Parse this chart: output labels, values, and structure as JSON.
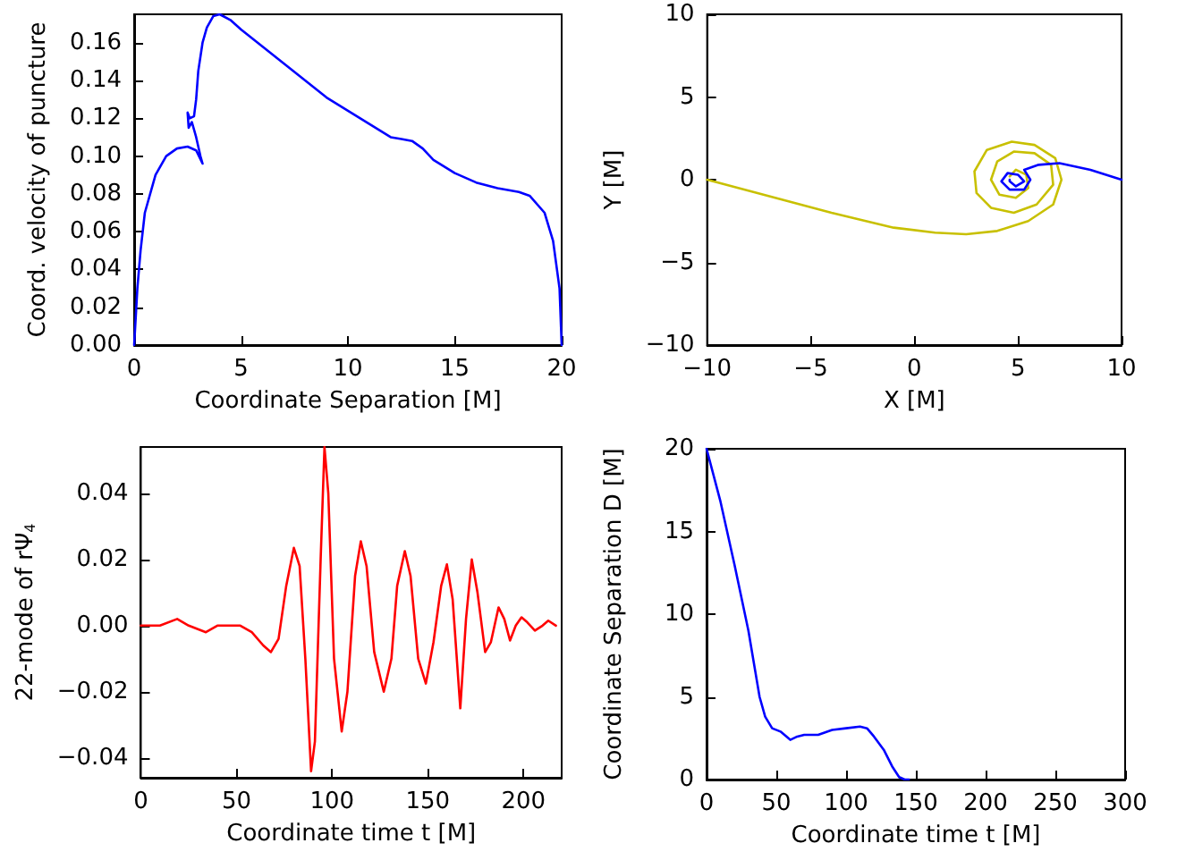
{
  "chart_data": [
    {
      "type": "line",
      "xlabel": "Coordinate Separation [M]",
      "ylabel": "Coord. velocity of puncture",
      "xlim": [
        0,
        20
      ],
      "xticks": [
        0,
        5,
        10,
        15,
        20
      ],
      "ylim": [
        0,
        0.175
      ],
      "yticks": [
        {
          "value": 0,
          "label": "0.00"
        },
        {
          "value": 0.02,
          "label": "0.02"
        },
        {
          "value": 0.04,
          "label": "0.04"
        },
        {
          "value": 0.06,
          "label": "0.06"
        },
        {
          "value": 0.08,
          "label": "0.08"
        },
        {
          "value": 0.1,
          "label": "0.10"
        },
        {
          "value": 0.12,
          "label": "0.12"
        },
        {
          "value": 0.14,
          "label": "0.14"
        },
        {
          "value": 0.16,
          "label": "0.16"
        }
      ],
      "grid": false,
      "marker": "none",
      "line_style": "solid",
      "series": [
        {
          "color": "#0000ff",
          "x": [
            20,
            19.9,
            19.6,
            19.2,
            18.5,
            18,
            17,
            16,
            15,
            14,
            13.5,
            13,
            12.5,
            12,
            11,
            10,
            9,
            8,
            7,
            6,
            5,
            4.5,
            4,
            3.7,
            3.4,
            3.2,
            3.0,
            2.9,
            2.8,
            2.6,
            2.5,
            2.55,
            2.7,
            2.9,
            3.1,
            3.2,
            2.9,
            2.5,
            2,
            1.5,
            1,
            0.5,
            0.3,
            0.15,
            0.05,
            0
          ],
          "values": [
            0,
            0.03,
            0.055,
            0.07,
            0.079,
            0.081,
            0.083,
            0.086,
            0.091,
            0.098,
            0.104,
            0.108,
            0.109,
            0.11,
            0.117,
            0.124,
            0.131,
            0.14,
            0.149,
            0.158,
            0.167,
            0.172,
            0.175,
            0.174,
            0.168,
            0.16,
            0.145,
            0.13,
            0.121,
            0.12,
            0.123,
            0.115,
            0.118,
            0.11,
            0.1,
            0.096,
            0.103,
            0.105,
            0.104,
            0.1,
            0.09,
            0.07,
            0.05,
            0.03,
            0.01,
            0
          ]
        }
      ]
    },
    {
      "type": "line",
      "xlabel": "X [M]",
      "ylabel": "Y [M]",
      "xlim": [
        -10,
        10
      ],
      "xticks": [
        {
          "value": -10,
          "label": "−10"
        },
        {
          "value": -5,
          "label": "−5"
        },
        0,
        5,
        10
      ],
      "ylim": [
        -10,
        10
      ],
      "yticks": [
        {
          "value": -10,
          "label": "−10"
        },
        {
          "value": -5,
          "label": "−5"
        },
        0,
        5,
        10
      ],
      "grid": false,
      "marker": "none",
      "line_style": "solid",
      "series": [
        {
          "color": "#c8c000",
          "x": [
            -10,
            -7,
            -4,
            -1,
            1,
            2.5,
            4,
            5.5,
            6.7,
            7.1,
            6.8,
            5.8,
            4.7,
            3.5,
            2.9,
            3.0,
            3.7,
            4.8,
            5.9,
            6.7,
            6.6,
            5.8,
            4.8,
            4,
            3.7,
            4.1,
            4.9,
            5.5,
            5.4,
            4.9,
            4.6
          ],
          "values": [
            0,
            -1,
            -2,
            -2.9,
            -3.2,
            -3.3,
            -3.1,
            -2.5,
            -1.5,
            0,
            1.3,
            2.1,
            2.3,
            1.8,
            0.5,
            -0.8,
            -1.7,
            -2,
            -1.5,
            -0.3,
            0.9,
            1.6,
            1.7,
            1.1,
            0,
            -0.9,
            -1.1,
            -0.5,
            0.3,
            0.6,
            0.2
          ]
        },
        {
          "color": "#0000ff",
          "x": [
            10,
            8.5,
            7,
            6,
            5.3,
            5.6,
            5.3,
            4.6,
            4.2,
            4.5,
            5,
            5.3,
            4.9,
            4.6,
            4.6
          ],
          "values": [
            0,
            0.6,
            1.0,
            0.9,
            0.6,
            0,
            -0.6,
            -0.6,
            -0.1,
            0.4,
            0.3,
            -0.1,
            -0.4,
            -0.1,
            0
          ]
        }
      ]
    },
    {
      "type": "line",
      "xlabel": "Coordinate time t [M]",
      "ylabel": "22-mode of rΨ$_{4}$",
      "xlim": [
        0,
        220
      ],
      "xticks": [
        0,
        50,
        100,
        150,
        200
      ],
      "ylim": [
        -0.046,
        0.054
      ],
      "yticks": [
        {
          "value": -0.04,
          "label": "−0.04"
        },
        {
          "value": -0.02,
          "label": "−0.02"
        },
        {
          "value": 0,
          "label": "0.00"
        },
        {
          "value": 0.02,
          "label": "0.02"
        },
        {
          "value": 0.04,
          "label": "0.04"
        }
      ],
      "grid": false,
      "marker": "none",
      "line_style": "solid",
      "series": [
        {
          "color": "#ff0000",
          "x": [
            0,
            10,
            19,
            25,
            34,
            40,
            52,
            58,
            64,
            68,
            72,
            76,
            80,
            83,
            86,
            89,
            91,
            94,
            96,
            98,
            101,
            105,
            108,
            112,
            115,
            118,
            122,
            127,
            131,
            134,
            138,
            141,
            145,
            149,
            153,
            157,
            160,
            163,
            167,
            170,
            173,
            176,
            180,
            183,
            187,
            190,
            193,
            196,
            199,
            202,
            206,
            210,
            213,
            217
          ],
          "values": [
            0,
            0,
            0.002,
            0,
            -0.002,
            0,
            0,
            -0.002,
            -0.006,
            -0.008,
            -0.004,
            0.012,
            0.0235,
            0.018,
            -0.01,
            -0.044,
            -0.035,
            0.02,
            0.054,
            0.04,
            -0.01,
            -0.032,
            -0.02,
            0.015,
            0.0255,
            0.018,
            -0.008,
            -0.02,
            -0.01,
            0.012,
            0.0225,
            0.015,
            -0.01,
            -0.0175,
            -0.005,
            0.012,
            0.0185,
            0.008,
            -0.025,
            0.002,
            0.02,
            0.01,
            -0.008,
            -0.005,
            0.0055,
            0.002,
            -0.0045,
            0,
            0.0025,
            0.001,
            -0.0015,
            0,
            0.0015,
            0
          ]
        }
      ]
    },
    {
      "type": "line",
      "xlabel": "Coordinate time t [M]",
      "ylabel": "Coordinate Separation D [M]",
      "xlim": [
        0,
        300
      ],
      "xticks": [
        0,
        50,
        100,
        150,
        200,
        250,
        300
      ],
      "ylim": [
        0,
        20
      ],
      "yticks": [
        0,
        5,
        10,
        15,
        20
      ],
      "grid": false,
      "marker": "none",
      "line_style": "solid",
      "series": [
        {
          "color": "#0000ff",
          "x": [
            0,
            10,
            20,
            30,
            38,
            42,
            47,
            53,
            60,
            65,
            70,
            80,
            90,
            100,
            110,
            115,
            120,
            127,
            133,
            138,
            142,
            145
          ],
          "values": [
            20,
            16.8,
            13,
            9,
            5,
            3.8,
            3.1,
            2.9,
            2.4,
            2.6,
            2.7,
            2.7,
            3.0,
            3.1,
            3.2,
            3.1,
            2.6,
            1.8,
            0.8,
            0.15,
            0,
            0
          ]
        }
      ]
    }
  ]
}
